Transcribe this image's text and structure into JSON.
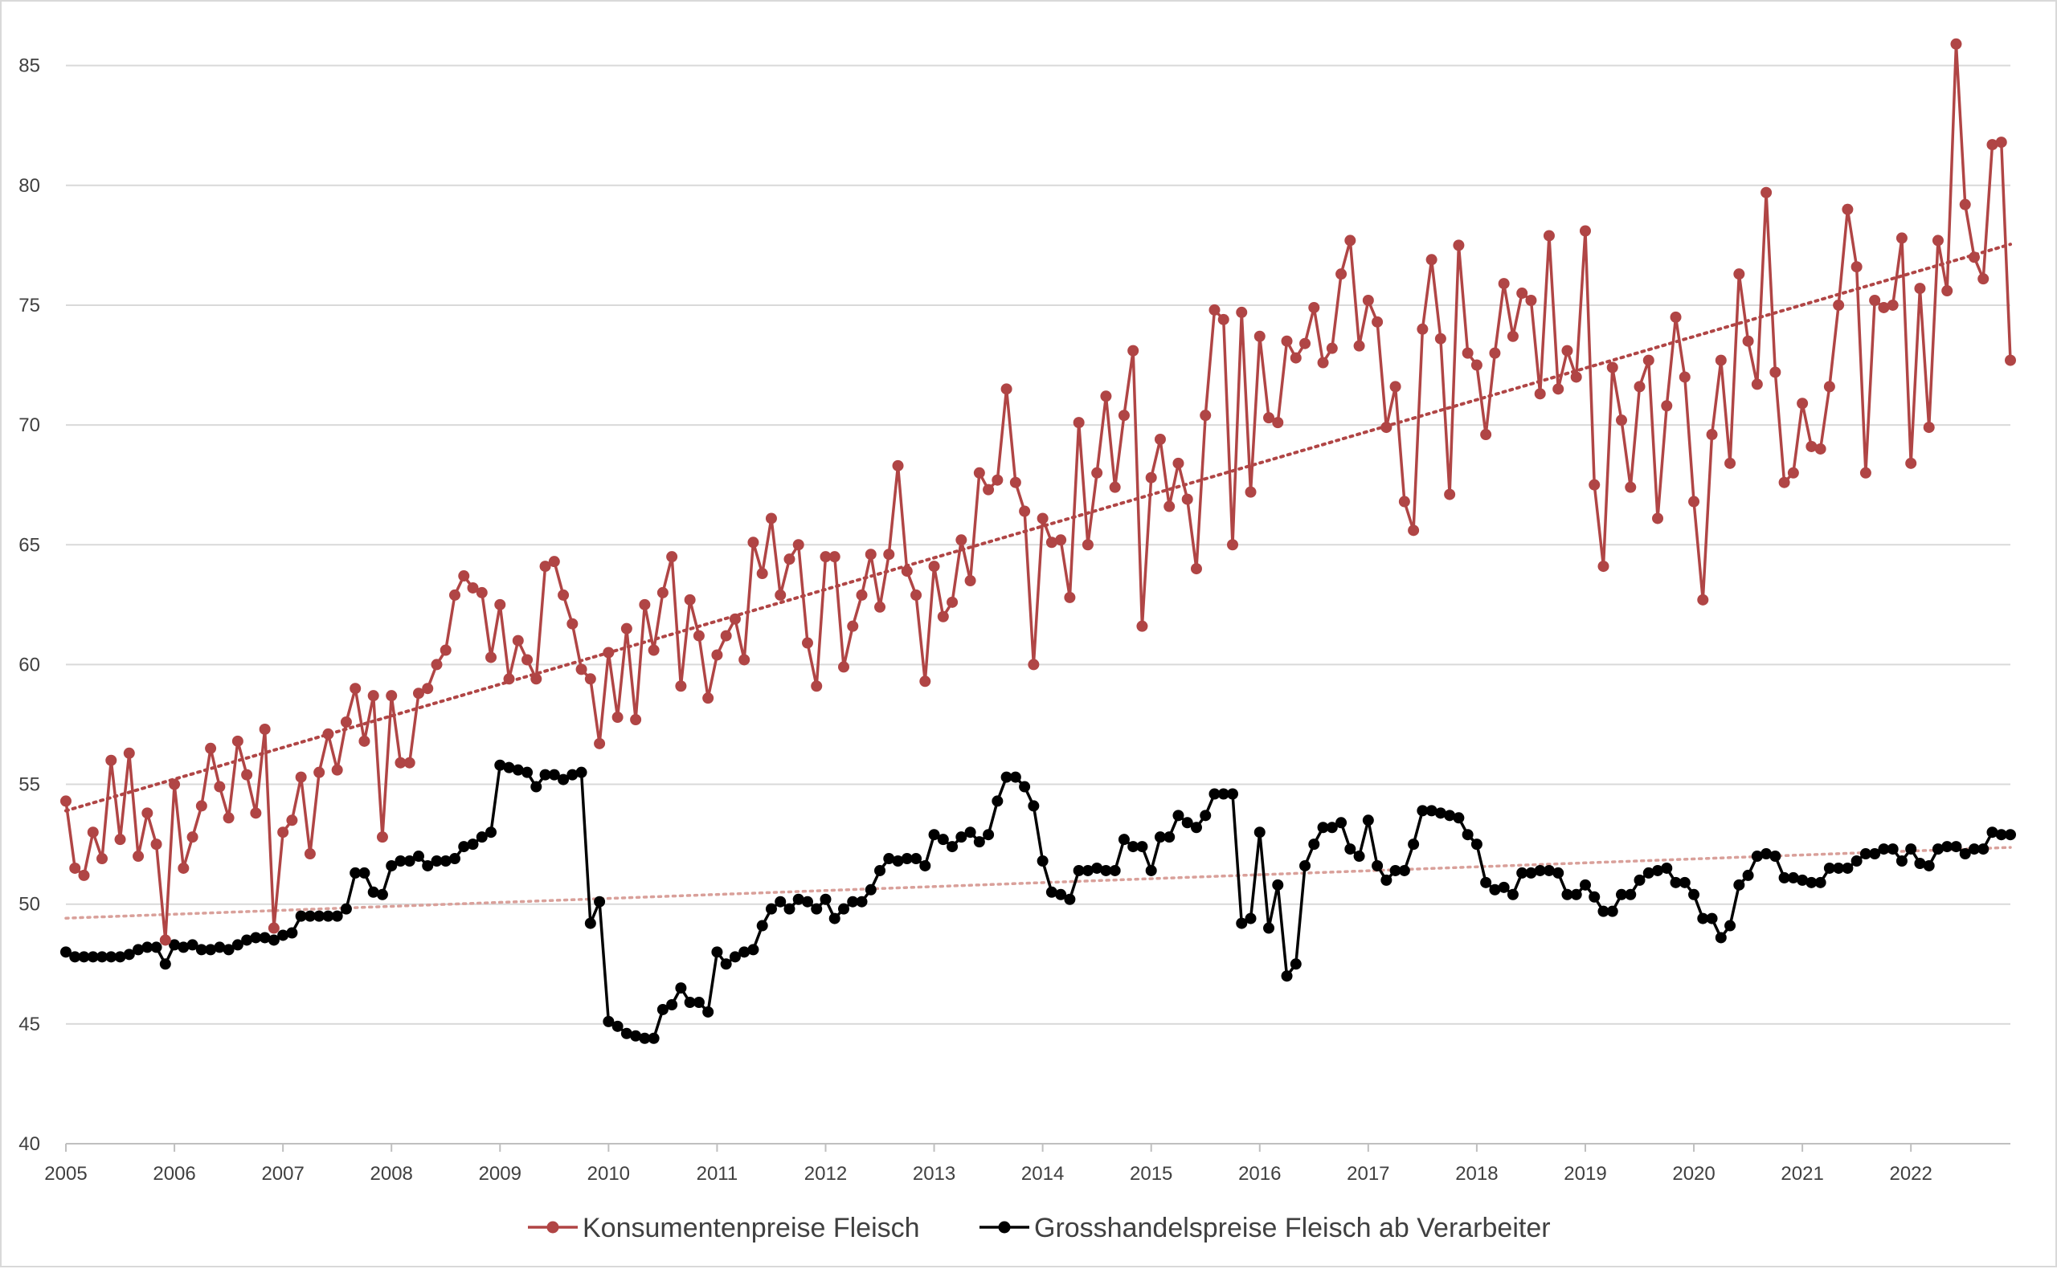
{
  "chart_data": {
    "type": "line",
    "title": "",
    "xlabel": "",
    "ylabel": "",
    "x_start": "2005-01",
    "x_frequency": "monthly",
    "x_ticks": [
      "2005",
      "2006",
      "2007",
      "2008",
      "2009",
      "2010",
      "2011",
      "2012",
      "2013",
      "2014",
      "2015",
      "2016",
      "2017",
      "2018",
      "2019",
      "2020",
      "2021",
      "2022"
    ],
    "y_ticks": [
      "40",
      "45",
      "50",
      "55",
      "60",
      "65",
      "70",
      "75",
      "80",
      "85"
    ],
    "xlim": [
      "2005-01",
      "2022-12"
    ],
    "ylim": [
      40,
      87
    ],
    "grid": "horizontal",
    "legend_position": "bottom",
    "trendlines": "linear, dotted",
    "series": [
      {
        "name": "Konsumentenpreise Fleisch",
        "color": "#b04545",
        "trend_color": "#b04545",
        "values": [
          54.3,
          51.5,
          51.2,
          53.0,
          51.9,
          56.0,
          52.7,
          56.3,
          52.0,
          53.8,
          52.5,
          48.5,
          55.0,
          51.5,
          52.8,
          54.1,
          56.5,
          54.9,
          53.6,
          56.8,
          55.4,
          53.8,
          57.3,
          49.0,
          53.0,
          53.5,
          55.3,
          52.1,
          55.5,
          57.1,
          55.6,
          57.6,
          59.0,
          56.8,
          58.7,
          52.8,
          58.7,
          55.9,
          55.9,
          58.8,
          59.0,
          60.0,
          60.6,
          62.9,
          63.7,
          63.2,
          63.0,
          60.3,
          62.5,
          59.4,
          61.0,
          60.2,
          59.4,
          64.1,
          64.3,
          62.9,
          61.7,
          59.8,
          59.4,
          56.7,
          60.5,
          57.8,
          61.5,
          57.7,
          62.5,
          60.6,
          63.0,
          64.5,
          59.1,
          62.7,
          61.2,
          58.6,
          60.4,
          61.2,
          61.9,
          60.2,
          65.1,
          63.8,
          66.1,
          62.9,
          64.4,
          65.0,
          60.9,
          59.1,
          64.5,
          64.5,
          59.9,
          61.6,
          62.9,
          64.6,
          62.4,
          64.6,
          68.3,
          63.9,
          62.9,
          59.3,
          64.1,
          62.0,
          62.6,
          65.2,
          63.5,
          68.0,
          67.3,
          67.7,
          71.5,
          67.6,
          66.4,
          60.0,
          66.1,
          65.1,
          65.2,
          62.8,
          70.1,
          65.0,
          68.0,
          71.2,
          67.4,
          70.4,
          73.1,
          61.6,
          67.8,
          69.4,
          66.6,
          68.4,
          66.9,
          64.0,
          70.4,
          74.8,
          74.4,
          65.0,
          74.7,
          67.2,
          73.7,
          70.3,
          70.1,
          73.5,
          72.8,
          73.4,
          74.9,
          72.6,
          73.2,
          76.3,
          77.7,
          73.3,
          75.2,
          74.3,
          69.9,
          71.6,
          66.8,
          65.6,
          74.0,
          76.9,
          73.6,
          67.1,
          77.5,
          73.0,
          72.5,
          69.6,
          73.0,
          75.9,
          73.7,
          75.5,
          75.2,
          71.3,
          77.9,
          71.5,
          73.1,
          72.0,
          78.1,
          67.5,
          64.1,
          72.4,
          70.2,
          67.4,
          71.6,
          72.7,
          66.1,
          70.8,
          74.5,
          72.0,
          66.8,
          62.7,
          69.6,
          72.7,
          68.4,
          76.3,
          73.5,
          71.7,
          79.7,
          72.2,
          67.6,
          68.0,
          70.9,
          69.1,
          69.0,
          71.6,
          75.0,
          79.0,
          76.6,
          68.0,
          75.2,
          74.9,
          75.0,
          77.8,
          68.4,
          75.7,
          69.9,
          77.7,
          75.6,
          85.9,
          79.2,
          77.0,
          76.1,
          81.7,
          81.8,
          72.7
        ]
      },
      {
        "name": "Grosshandelspreise Fleisch ab Verarbeiter",
        "color": "#000000",
        "trend_color": "#d9a09a",
        "values": [
          48.0,
          47.8,
          47.8,
          47.8,
          47.8,
          47.8,
          47.8,
          47.9,
          48.1,
          48.2,
          48.2,
          47.5,
          48.3,
          48.2,
          48.3,
          48.1,
          48.1,
          48.2,
          48.1,
          48.3,
          48.5,
          48.6,
          48.6,
          48.5,
          48.7,
          48.8,
          49.5,
          49.5,
          49.5,
          49.5,
          49.5,
          49.8,
          51.3,
          51.3,
          50.5,
          50.4,
          51.6,
          51.8,
          51.8,
          52.0,
          51.6,
          51.8,
          51.8,
          51.9,
          52.4,
          52.5,
          52.8,
          53.0,
          55.8,
          55.7,
          55.6,
          55.5,
          54.9,
          55.4,
          55.4,
          55.2,
          55.4,
          55.5,
          49.2,
          50.1,
          45.1,
          44.9,
          44.6,
          44.5,
          44.4,
          44.4,
          45.6,
          45.8,
          46.5,
          45.9,
          45.9,
          45.5,
          48.0,
          47.5,
          47.8,
          48.0,
          48.1,
          49.1,
          49.8,
          50.1,
          49.8,
          50.2,
          50.1,
          49.8,
          50.2,
          49.4,
          49.8,
          50.1,
          50.1,
          50.6,
          51.4,
          51.9,
          51.8,
          51.9,
          51.9,
          51.6,
          52.9,
          52.7,
          52.4,
          52.8,
          53.0,
          52.6,
          52.9,
          54.3,
          55.3,
          55.3,
          54.9,
          54.1,
          51.8,
          50.5,
          50.4,
          50.2,
          51.4,
          51.4,
          51.5,
          51.4,
          51.4,
          52.7,
          52.4,
          52.4,
          51.4,
          52.8,
          52.8,
          53.7,
          53.4,
          53.2,
          53.7,
          54.6,
          54.6,
          54.6,
          49.2,
          49.4,
          53.0,
          49.0,
          50.8,
          47.0,
          47.5,
          51.6,
          52.5,
          53.2,
          53.2,
          53.4,
          52.3,
          52.0,
          53.5,
          51.6,
          51.0,
          51.4,
          51.4,
          52.5,
          53.9,
          53.9,
          53.8,
          53.7,
          53.6,
          52.9,
          52.5,
          50.9,
          50.6,
          50.7,
          50.4,
          51.3,
          51.3,
          51.4,
          51.4,
          51.3,
          50.4,
          50.4,
          50.8,
          50.3,
          49.7,
          49.7,
          50.4,
          50.4,
          51.0,
          51.3,
          51.4,
          51.5,
          50.9,
          50.9,
          50.4,
          49.4,
          49.4,
          48.6,
          49.1,
          50.8,
          51.2,
          52.0,
          52.1,
          52.0,
          51.1,
          51.1,
          51.0,
          50.9,
          50.9,
          51.5,
          51.5,
          51.5,
          51.8,
          52.1,
          52.1,
          52.3,
          52.3,
          51.8,
          52.3,
          51.7,
          51.6,
          52.3,
          52.4,
          52.4,
          52.1,
          52.3,
          52.3,
          53.0,
          52.9,
          52.9
        ]
      }
    ]
  }
}
